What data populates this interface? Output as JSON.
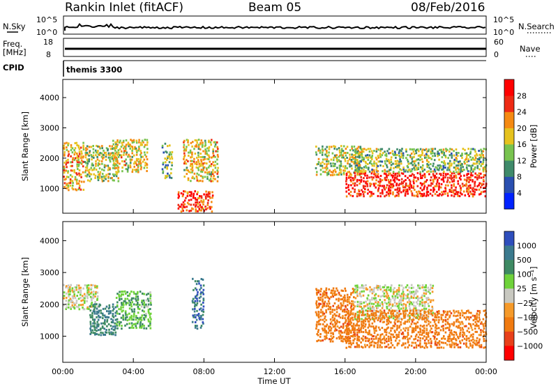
{
  "header": {
    "station": "Rankin Inlet (fitACF)",
    "beam": "Beam 05",
    "date": "08/Feb/2016"
  },
  "top_panels": {
    "nsky_label": "N.Sky",
    "nsky_ticks": [
      "10^5",
      "10^0"
    ],
    "nsearch_label": "N.Search",
    "nsearch_ticks": [
      "10^5",
      "10^0"
    ],
    "freq_label": "Freq.",
    "freq_unit": "[MHz]",
    "freq_ticks": [
      "18",
      "8"
    ],
    "nave_label": "Nave",
    "nave_ticks": [
      "60",
      "0"
    ],
    "cpid_label": "CPID",
    "cpid_value": "themis 3300"
  },
  "chart_data": [
    {
      "type": "heatmap",
      "title": "",
      "xlabel": "",
      "ylabel": "Slant Range [km]",
      "x_ticks": [
        "00:00",
        "04:00",
        "08:00",
        "12:00",
        "16:00",
        "20:00",
        "00:00"
      ],
      "xlim_hours": [
        0,
        24
      ],
      "ylim": [
        180,
        4600
      ],
      "y_ticks": [
        1000,
        2000,
        3000,
        4000
      ],
      "colorbar": {
        "label": "Power [dB]",
        "ticks": [
          "4",
          "8",
          "12",
          "16",
          "20",
          "24",
          "28"
        ],
        "colors": [
          "#0022ff",
          "#2a4fb0",
          "#3f8a6a",
          "#78c34f",
          "#e6c21e",
          "#f58a12",
          "#ee2a14",
          "#ff0000"
        ]
      },
      "regions": [
        {
          "x": [
            0.0,
            1.2
          ],
          "y": [
            900,
            2500
          ],
          "value": 20
        },
        {
          "x": [
            1.2,
            3.2
          ],
          "y": [
            1200,
            2400
          ],
          "value": 16
        },
        {
          "x": [
            2.8,
            4.8
          ],
          "y": [
            1500,
            2600
          ],
          "value": 18
        },
        {
          "x": [
            5.6,
            6.2
          ],
          "y": [
            1300,
            2500
          ],
          "value": 12
        },
        {
          "x": [
            6.8,
            8.8
          ],
          "y": [
            1200,
            2600
          ],
          "value": 18
        },
        {
          "x": [
            6.5,
            8.5
          ],
          "y": [
            200,
            900
          ],
          "value": 26
        },
        {
          "x": [
            14.3,
            17.0
          ],
          "y": [
            1400,
            2400
          ],
          "value": 16
        },
        {
          "x": [
            16.0,
            24.0
          ],
          "y": [
            700,
            1500
          ],
          "value": 28
        },
        {
          "x": [
            16.5,
            24.0
          ],
          "y": [
            1500,
            2300
          ],
          "value": 14
        }
      ]
    },
    {
      "type": "heatmap",
      "title": "",
      "xlabel": "Time UT",
      "ylabel": "Slant Range [km]",
      "x_ticks": [
        "00:00",
        "04:00",
        "08:00",
        "12:00",
        "16:00",
        "20:00",
        "00:00"
      ],
      "xlim_hours": [
        0,
        24
      ],
      "ylim": [
        180,
        4600
      ],
      "y_ticks": [
        1000,
        2000,
        3000,
        4000
      ],
      "colorbar": {
        "label": "Velocity [m s⁻¹]",
        "ticks": [
          "1000",
          "500",
          "100",
          "25",
          "−25",
          "−100",
          "−500",
          "−1000"
        ],
        "colors": [
          "#2e4ebc",
          "#3b7a8e",
          "#3e8a63",
          "#6fd23a",
          "#c8c8c0",
          "#f59a2a",
          "#f07a10",
          "#e8401a",
          "#ff0000"
        ]
      },
      "regions": [
        {
          "x": [
            0.0,
            2.0
          ],
          "y": [
            1800,
            2600
          ],
          "value": 0
        },
        {
          "x": [
            1.5,
            3.0
          ],
          "y": [
            1000,
            2000
          ],
          "value": 500
        },
        {
          "x": [
            3.0,
            5.0
          ],
          "y": [
            1200,
            2400
          ],
          "value": 100
        },
        {
          "x": [
            7.3,
            8.0
          ],
          "y": [
            1200,
            2800
          ],
          "value": 800
        },
        {
          "x": [
            14.3,
            16.5
          ],
          "y": [
            800,
            2500
          ],
          "value": -300
        },
        {
          "x": [
            16.5,
            21.0
          ],
          "y": [
            1500,
            2600
          ],
          "value": 0
        },
        {
          "x": [
            16.0,
            24.0
          ],
          "y": [
            600,
            1800
          ],
          "value": -300
        }
      ]
    }
  ]
}
